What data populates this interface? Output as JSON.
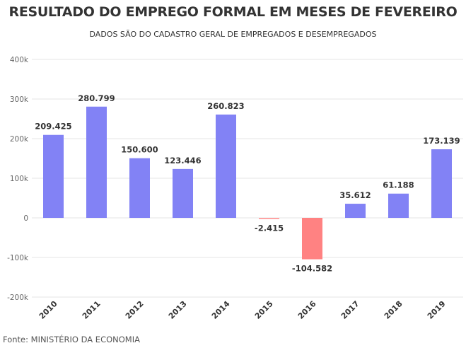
{
  "chart_data": {
    "type": "bar",
    "title": "RESULTADO DO EMPREGO FORMAL EM MESES DE FEVEREIRO",
    "subtitle": "DADOS SÃO DO CADASTRO GERAL DE EMPREGADOS E DESEMPREGADOS",
    "categories": [
      "2010",
      "2011",
      "2012",
      "2013",
      "2014",
      "2015",
      "2016",
      "2017",
      "2018",
      "2019"
    ],
    "values": [
      209425,
      280799,
      150600,
      123446,
      260823,
      -2415,
      -104582,
      35612,
      61188,
      173139
    ],
    "data_labels": [
      "209.425",
      "280.799",
      "150.600",
      "123.446",
      "260.823",
      "-2.415",
      "-104.582",
      "35.612",
      "61.188",
      "173.139"
    ],
    "ylim": [
      -200000,
      400000
    ],
    "yticks": [
      400000,
      300000,
      200000,
      100000,
      0,
      -100000,
      -200000
    ],
    "ytick_labels": [
      "400k",
      "300k",
      "200k",
      "100k",
      "0",
      "-100k",
      "-200k"
    ],
    "grid": true,
    "colors": {
      "positive": "#8282f5",
      "negative": "#ff8282",
      "grid": "#e6e6e6",
      "text": "#333333"
    }
  },
  "source": "Fonte: MINISTÉRIO DA ECONOMIA"
}
